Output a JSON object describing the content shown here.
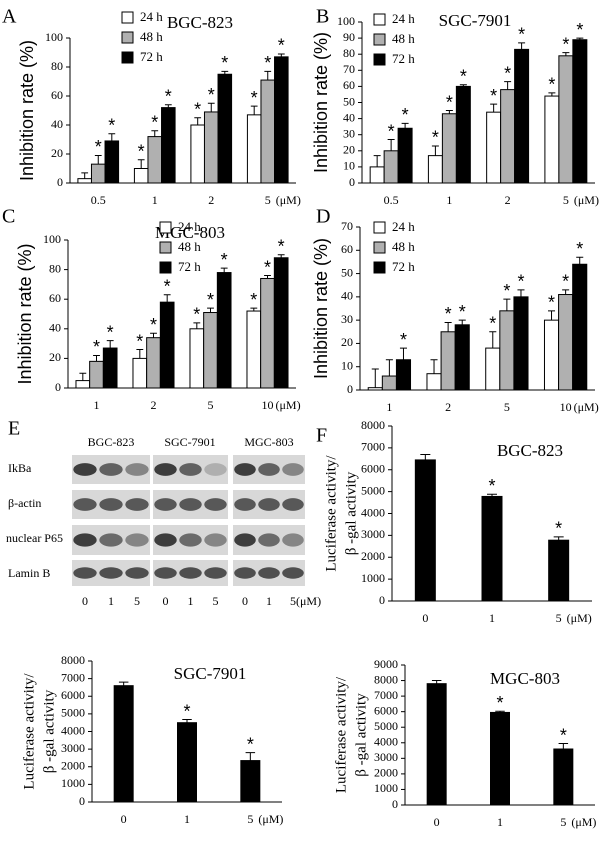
{
  "chart_data": [
    {
      "type": "bar",
      "panel": "A",
      "title": "BGC-823",
      "ylabel": [
        "Inhibition rate (%)"
      ],
      "unit": "(μM)",
      "categories": [
        "0.5",
        "1",
        "2",
        "5"
      ],
      "ylim": [
        0,
        100
      ],
      "yticks": [
        0,
        20,
        40,
        60,
        80,
        100
      ],
      "series": [
        {
          "name": "24 h",
          "color": "#ffffff",
          "values": [
            3,
            10,
            40,
            47
          ],
          "errors": [
            4,
            6,
            5,
            6
          ],
          "stars": [
            null,
            "*",
            "*",
            "*"
          ]
        },
        {
          "name": "48 h",
          "color": "#b0b0b0",
          "values": [
            13,
            32,
            49,
            71
          ],
          "errors": [
            6,
            4,
            6,
            6
          ],
          "stars": [
            "*",
            "*",
            "*",
            "*"
          ]
        },
        {
          "name": "72 h",
          "color": "#000000",
          "values": [
            29,
            52,
            75,
            87
          ],
          "errors": [
            5,
            2,
            2,
            2
          ],
          "stars": [
            "*",
            "*",
            "*",
            "*"
          ]
        }
      ]
    },
    {
      "type": "bar",
      "panel": "B",
      "title": "SGC-7901",
      "ylabel": [
        "Inhibition rate (%)"
      ],
      "unit": "(μM)",
      "categories": [
        "0.5",
        "1",
        "2",
        "5"
      ],
      "ylim": [
        0,
        100
      ],
      "yticks": [
        0,
        10,
        20,
        30,
        40,
        50,
        60,
        70,
        80,
        90,
        100
      ],
      "series": [
        {
          "name": "24 h",
          "color": "#ffffff",
          "values": [
            10,
            17,
            44,
            54
          ],
          "errors": [
            7,
            6,
            5,
            2
          ],
          "stars": [
            null,
            "*",
            "*",
            "*"
          ]
        },
        {
          "name": "48 h",
          "color": "#b0b0b0",
          "values": [
            20,
            43,
            58,
            79
          ],
          "errors": [
            7,
            2,
            5,
            2
          ],
          "stars": [
            "*",
            "*",
            "*",
            "*"
          ]
        },
        {
          "name": "72 h",
          "color": "#000000",
          "values": [
            34,
            60,
            83,
            89
          ],
          "errors": [
            3,
            1,
            4,
            1
          ],
          "stars": [
            "*",
            "*",
            "*",
            "*"
          ]
        }
      ]
    },
    {
      "type": "bar",
      "panel": "C",
      "title": "MGC-803",
      "ylabel": [
        "Inhibition rate (%)"
      ],
      "unit": "(μM)",
      "categories": [
        "1",
        "2",
        "5",
        "10"
      ],
      "ylim": [
        0,
        100
      ],
      "yticks": [
        0,
        20,
        40,
        60,
        80,
        100
      ],
      "series": [
        {
          "name": "24 h",
          "color": "#ffffff",
          "values": [
            5,
            20,
            40,
            52
          ],
          "errors": [
            5,
            6,
            4,
            2
          ],
          "stars": [
            null,
            "*",
            "*",
            "*"
          ]
        },
        {
          "name": "48 h",
          "color": "#b0b0b0",
          "values": [
            18,
            34,
            51,
            74
          ],
          "errors": [
            4,
            3,
            3,
            2
          ],
          "stars": [
            "*",
            "*",
            "*",
            "*"
          ]
        },
        {
          "name": "72 h",
          "color": "#000000",
          "values": [
            27,
            58,
            78,
            88
          ],
          "errors": [
            5,
            5,
            3,
            2
          ],
          "stars": [
            "*",
            "*",
            "*",
            "*"
          ]
        }
      ]
    },
    {
      "type": "bar",
      "panel": "D",
      "ylabel": [
        "Inhibition rate (%)"
      ],
      "unit": "(μM)",
      "categories": [
        "1",
        "2",
        "5",
        "10"
      ],
      "ylim": [
        0,
        70
      ],
      "yticks": [
        0,
        10,
        20,
        30,
        40,
        50,
        60,
        70
      ],
      "series": [
        {
          "name": "24 h",
          "color": "#ffffff",
          "values": [
            1,
            7,
            18,
            30
          ],
          "errors": [
            8,
            6,
            7,
            4
          ],
          "stars": [
            null,
            null,
            "*",
            "*"
          ]
        },
        {
          "name": "48 h",
          "color": "#b0b0b0",
          "values": [
            6,
            25,
            34,
            41
          ],
          "errors": [
            7,
            4,
            5,
            2
          ],
          "stars": [
            null,
            "*",
            "*",
            "*"
          ]
        },
        {
          "name": "72 h",
          "color": "#000000",
          "values": [
            13,
            28,
            40,
            54
          ],
          "errors": [
            5,
            2,
            3,
            3
          ],
          "stars": [
            "*",
            "*",
            "*",
            "*"
          ]
        }
      ]
    },
    {
      "type": "bar",
      "panel": "F",
      "title": "BGC-823",
      "ylabel": [
        "Luciferase activity/",
        "β -gal activity"
      ],
      "unit": "(μM)",
      "categories": [
        "0",
        "1",
        "5"
      ],
      "ylim": [
        0,
        8000
      ],
      "yticks": [
        0,
        1000,
        2000,
        3000,
        4000,
        5000,
        6000,
        7000,
        8000
      ],
      "series": [
        {
          "color": "#000000",
          "values": [
            6450,
            4780,
            2780
          ],
          "errors": [
            250,
            100,
            150
          ],
          "stars": [
            null,
            "*",
            "*"
          ]
        }
      ]
    },
    {
      "type": "bar",
      "title": "SGC-7901",
      "ylabel": [
        "Luciferase activity/",
        "β -gal activity"
      ],
      "unit": "(μM)",
      "categories": [
        "0",
        "1",
        "5"
      ],
      "ylim": [
        0,
        8000
      ],
      "yticks": [
        0,
        1000,
        2000,
        3000,
        4000,
        5000,
        6000,
        7000,
        8000
      ],
      "series": [
        {
          "color": "#000000",
          "values": [
            6600,
            4500,
            2350
          ],
          "errors": [
            200,
            180,
            450
          ],
          "stars": [
            null,
            "*",
            "*"
          ]
        }
      ]
    },
    {
      "type": "bar",
      "title": "MGC-803",
      "ylabel": [
        "Luciferase activity/",
        "β -gal activity"
      ],
      "unit": "(μM)",
      "categories": [
        "0",
        "1",
        "5"
      ],
      "ylim": [
        0,
        9000
      ],
      "yticks": [
        0,
        1000,
        2000,
        3000,
        4000,
        5000,
        6000,
        7000,
        8000,
        9000
      ],
      "series": [
        {
          "color": "#000000",
          "values": [
            7800,
            5950,
            3600
          ],
          "errors": [
            200,
            80,
            350
          ],
          "stars": [
            null,
            "*",
            "*"
          ]
        }
      ]
    }
  ],
  "blot": {
    "panel": "E",
    "groups": [
      "BGC-823",
      "SGC-7901",
      "MGC-803"
    ],
    "rows": [
      "IkBa",
      "β-actin",
      "nuclear P65",
      "Lamin B"
    ],
    "lanes": [
      "0",
      "1",
      "5"
    ],
    "unit": "(μM)"
  }
}
